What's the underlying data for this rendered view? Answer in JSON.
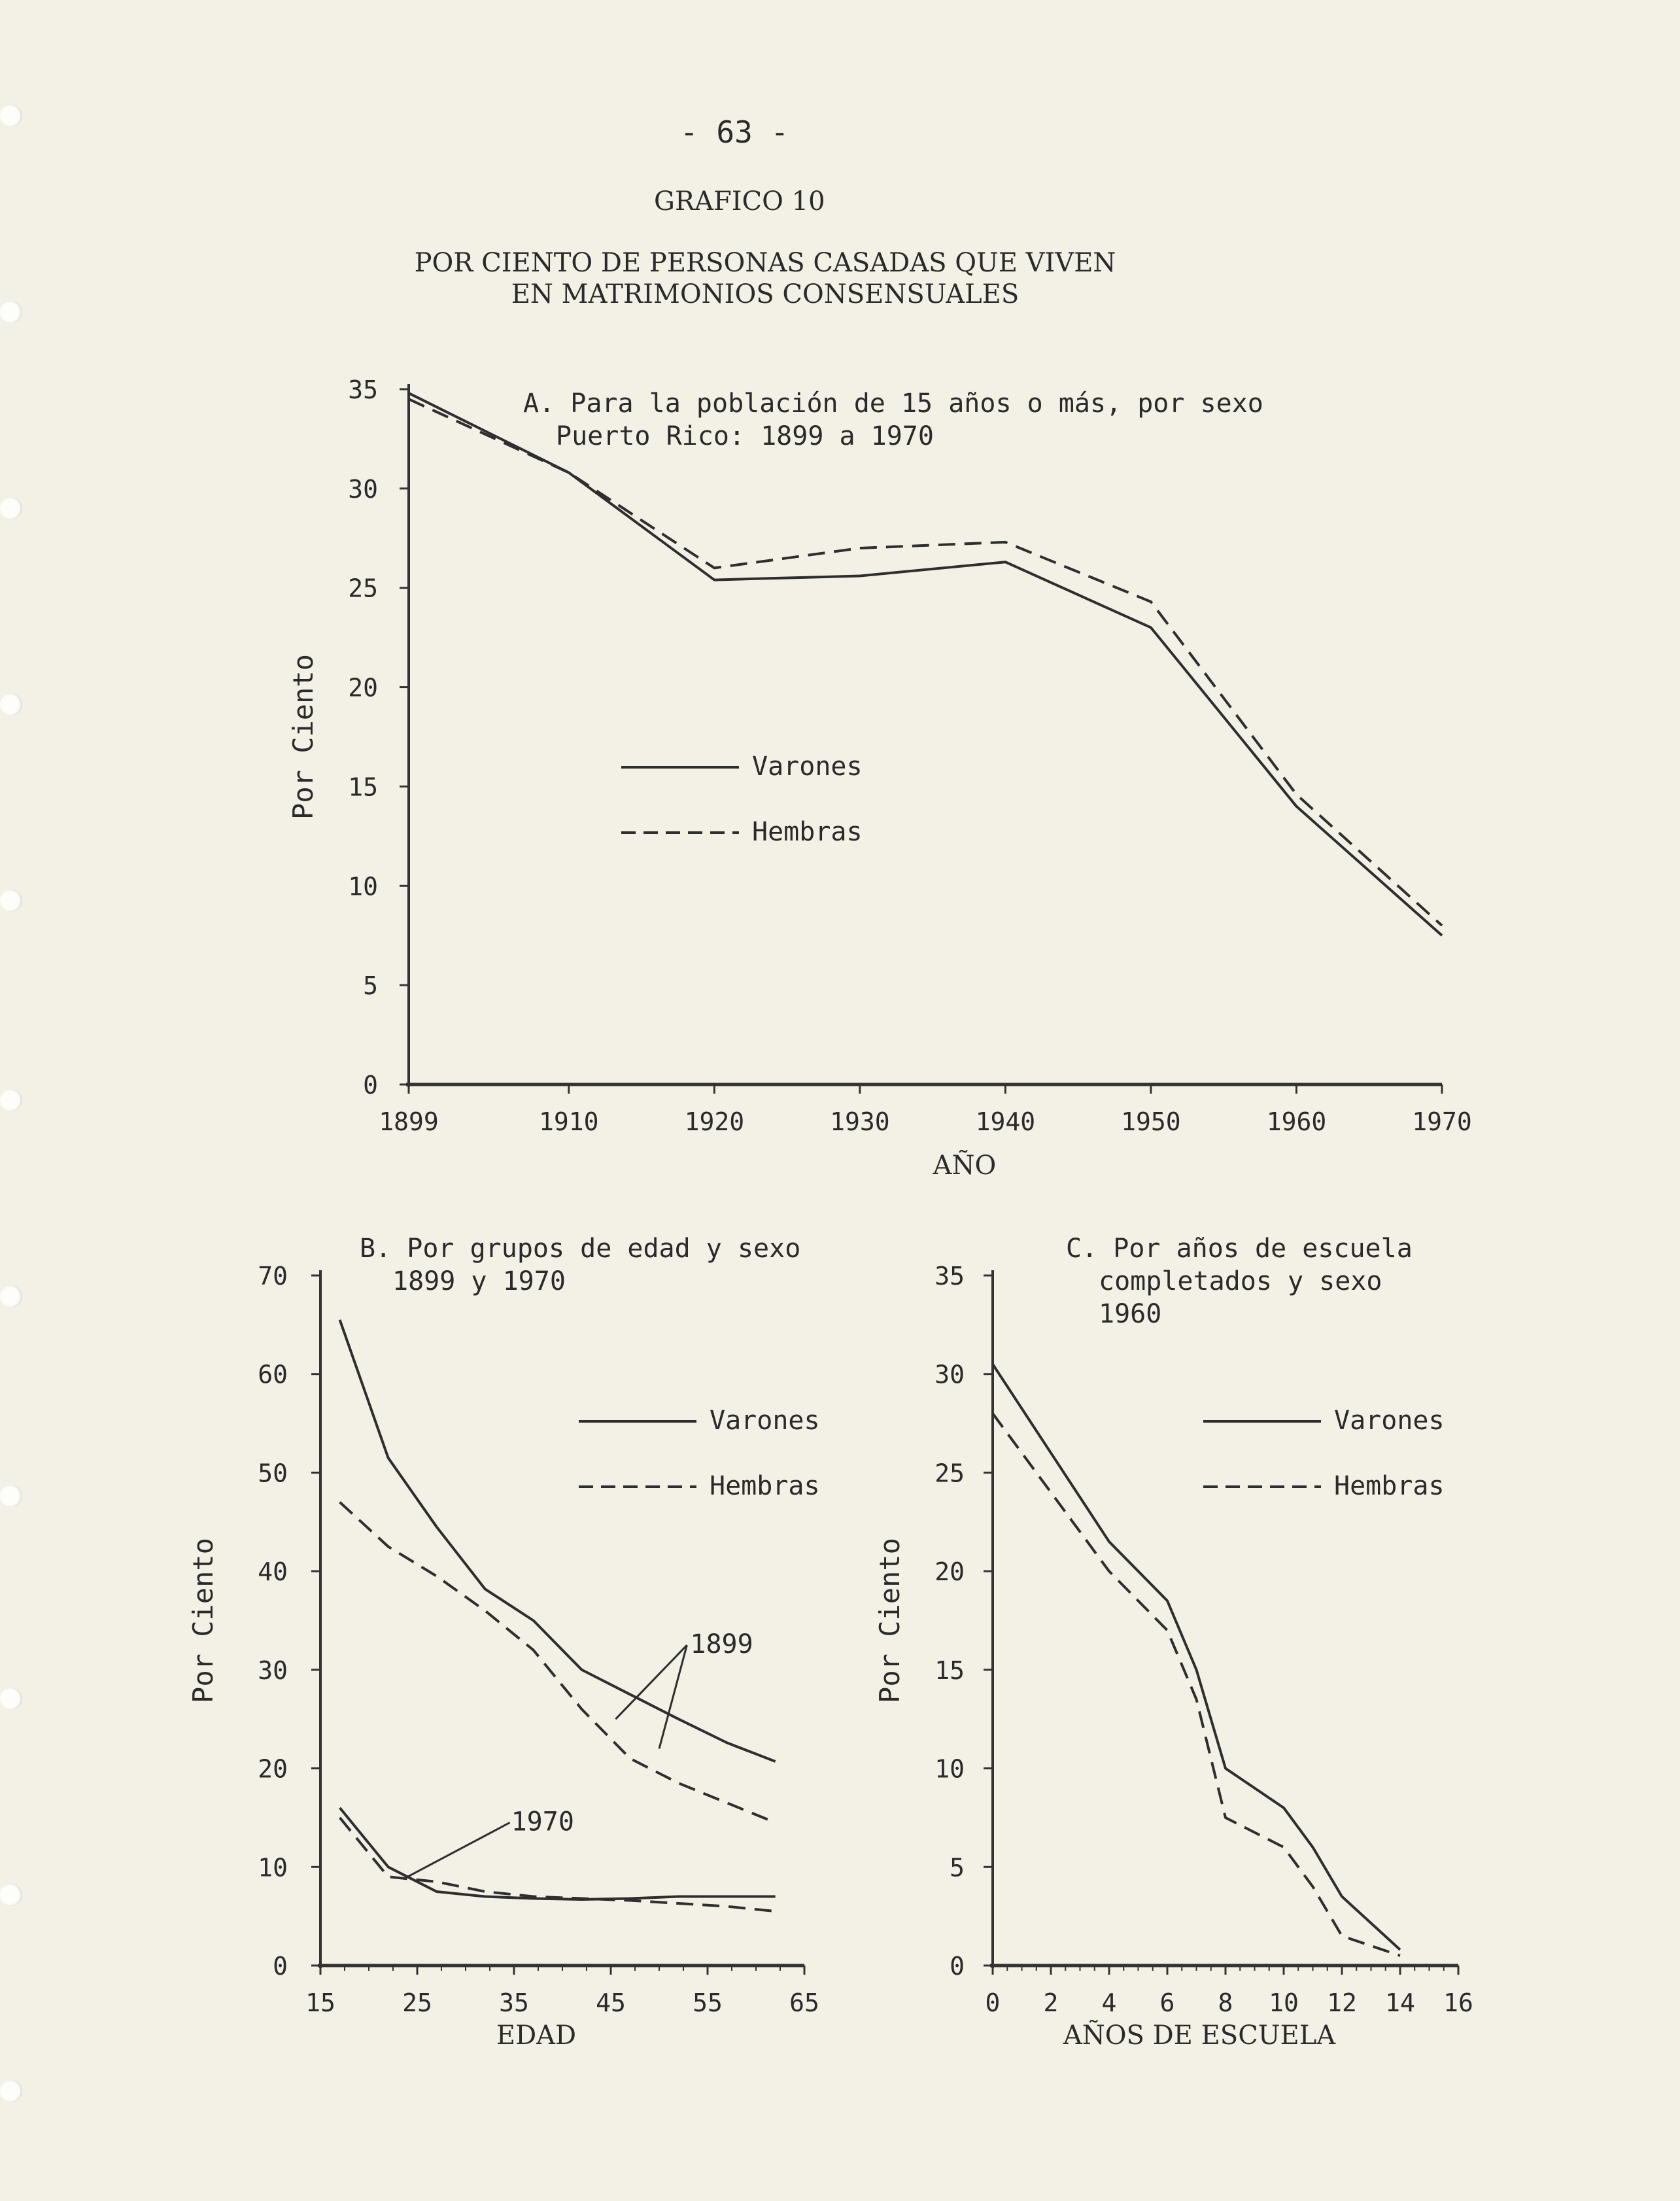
{
  "page": {
    "number": "- 63 -",
    "figure_label": "GRAFICO 10",
    "title_lines": [
      "POR CIENTO DE PERSONAS CASADAS QUE VIVEN",
      "EN MATRIMONIOS CONSENSUALES"
    ]
  },
  "chart_data": [
    {
      "id": "A",
      "type": "line",
      "title_lines": [
        "A. Para la población de 15 años o más, por sexo",
        "Puerto Rico: 1899 a 1970"
      ],
      "xlabel": "AÑO",
      "ylabel": "Por Ciento",
      "x": [
        1899,
        1910,
        1920,
        1930,
        1940,
        1950,
        1960,
        1970
      ],
      "xticks": [
        "1899",
        "1910",
        "1920",
        "1930",
        "1940",
        "1950",
        "1960",
        "1970"
      ],
      "ylim": [
        0,
        35
      ],
      "yticks": [
        "0",
        "5",
        "10",
        "15",
        "20",
        "25",
        "30",
        "35"
      ],
      "legend": [
        {
          "label": "Varones",
          "style": "solid"
        },
        {
          "label": "Hembras",
          "style": "dashed"
        }
      ],
      "series": [
        {
          "name": "Varones",
          "style": "solid",
          "values": [
            34.8,
            30.8,
            25.4,
            25.6,
            26.3,
            23.0,
            14.0,
            7.5
          ]
        },
        {
          "name": "Hembras",
          "style": "dashed",
          "values": [
            34.5,
            30.8,
            26.0,
            27.0,
            27.3,
            24.3,
            14.6,
            8.0
          ]
        }
      ]
    },
    {
      "id": "B",
      "type": "line",
      "title_lines": [
        "B. Por grupos de edad y sexo",
        "1899 y 1970"
      ],
      "xlabel": "EDAD",
      "ylabel": "Por Ciento",
      "xlim": [
        15,
        65
      ],
      "xticks": [
        "15",
        "25",
        "35",
        "45",
        "55",
        "65"
      ],
      "ylim": [
        0,
        70
      ],
      "yticks": [
        "0",
        "10",
        "20",
        "30",
        "40",
        "50",
        "60",
        "70"
      ],
      "legend": [
        {
          "label": "Varones",
          "style": "solid"
        },
        {
          "label": "Hembras",
          "style": "dashed"
        }
      ],
      "annotations": [
        "1899",
        "1970"
      ],
      "series": [
        {
          "name": "Varones",
          "year": "1899",
          "style": "solid",
          "x": [
            17,
            22,
            27,
            32,
            37,
            42,
            47,
            52,
            57,
            62
          ],
          "values": [
            65.5,
            51.5,
            44.5,
            38.2,
            35.0,
            30.0,
            27.5,
            25.0,
            22.6,
            20.7
          ]
        },
        {
          "name": "Hembras",
          "year": "1899",
          "style": "dashed",
          "x": [
            17,
            22,
            27,
            32,
            37,
            42,
            47,
            52,
            57,
            62
          ],
          "values": [
            47.0,
            42.5,
            39.5,
            36.0,
            32.0,
            26.0,
            21.0,
            18.5,
            16.5,
            14.5
          ]
        },
        {
          "name": "Varones",
          "year": "1970",
          "style": "solid",
          "x": [
            17,
            22,
            27,
            32,
            37,
            42,
            47,
            52,
            57,
            62
          ],
          "values": [
            16.0,
            10.0,
            7.5,
            7.0,
            6.8,
            6.7,
            6.8,
            7.0,
            7.0,
            7.0
          ]
        },
        {
          "name": "Hembras",
          "year": "1970",
          "style": "dashed",
          "x": [
            17,
            22,
            27,
            32,
            37,
            42,
            47,
            52,
            57,
            62
          ],
          "values": [
            15.0,
            9.0,
            8.5,
            7.5,
            7.0,
            6.8,
            6.6,
            6.3,
            6.0,
            5.5
          ]
        }
      ]
    },
    {
      "id": "C",
      "type": "line",
      "title_lines": [
        "C. Por años de escuela",
        "completados y sexo",
        "1960"
      ],
      "xlabel": "AÑOS DE ESCUELA",
      "ylabel": "Por Ciento",
      "xlim": [
        0,
        16
      ],
      "xticks": [
        "0",
        "2",
        "4",
        "6",
        "8",
        "10",
        "12",
        "14",
        "16"
      ],
      "ylim": [
        0,
        35
      ],
      "yticks": [
        "0",
        "5",
        "10",
        "15",
        "20",
        "25",
        "30",
        "35"
      ],
      "legend": [
        {
          "label": "Varones",
          "style": "solid"
        },
        {
          "label": "Hembras",
          "style": "dashed"
        }
      ],
      "series": [
        {
          "name": "Varones",
          "style": "solid",
          "x": [
            0,
            2,
            4,
            6,
            7,
            8,
            10,
            11,
            12,
            14
          ],
          "values": [
            30.5,
            26.0,
            21.5,
            18.5,
            15.0,
            10.0,
            8.0,
            6.0,
            3.5,
            0.8
          ]
        },
        {
          "name": "Hembras",
          "style": "dashed",
          "x": [
            0,
            2,
            4,
            6,
            7,
            8,
            10,
            11,
            12,
            14
          ],
          "values": [
            28.0,
            24.0,
            20.0,
            17.0,
            13.5,
            7.5,
            6.0,
            4.0,
            1.5,
            0.5
          ]
        }
      ]
    }
  ]
}
